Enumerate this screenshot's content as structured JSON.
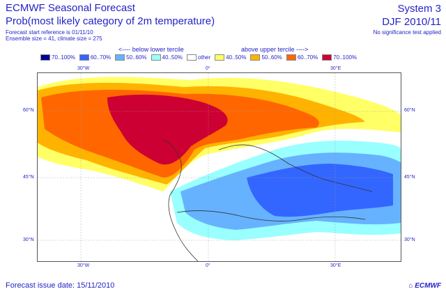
{
  "header": {
    "title": "ECMWF Seasonal Forecast",
    "subtitle": "Prob(most likely category of 2m temperature)",
    "start_reference": "Forecast start reference is 01/11/10",
    "ensemble": "Ensemble size = 41, climate size = 275",
    "system": "System 3",
    "period": "DJF 2010/11",
    "significance": "No significance test applied"
  },
  "legend": {
    "below_label": "<---- below lower tercile",
    "above_label": "above upper tercile ---->",
    "items": [
      {
        "label": "70..100%",
        "color": "#000099"
      },
      {
        "label": "60..70%",
        "color": "#3366ff"
      },
      {
        "label": "50..60%",
        "color": "#66b2ff"
      },
      {
        "label": "40..50%",
        "color": "#99ffff"
      },
      {
        "label": "other",
        "color": "#ffffff"
      },
      {
        "label": "40..50%",
        "color": "#ffff66"
      },
      {
        "label": "50..60%",
        "color": "#ffb300"
      },
      {
        "label": "60..70%",
        "color": "#ff6600"
      },
      {
        "label": "70..100%",
        "color": "#cc0033"
      }
    ]
  },
  "axes": {
    "top_lon": [
      "30°W",
      "0°",
      "30°E"
    ],
    "bottom_lon": [
      "30°W",
      "0°",
      "30°E"
    ],
    "lat_left": [
      "60°N",
      "45°N",
      "30°N"
    ],
    "lat_right": [
      "60°N",
      "45°N",
      "30°N"
    ]
  },
  "footer": {
    "issue_date": "Forecast issue date: 15/11/2010",
    "brand": "ECMWF"
  }
}
